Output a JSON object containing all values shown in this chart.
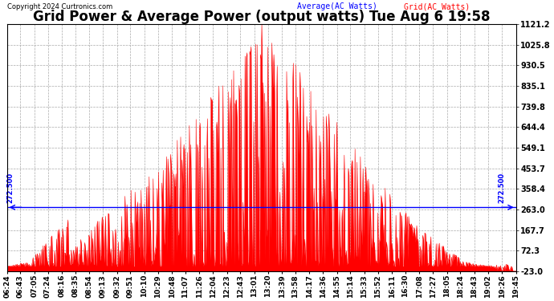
{
  "title": "Grid Power & Average Power (output watts) Tue Aug 6 19:58",
  "copyright": "Copyright 2024 Curtronics.com",
  "legend_avg": "Average(AC Watts)",
  "legend_grid": "Grid(AC Watts)",
  "avg_line_value": 272.5,
  "avg_line_label": "272.500",
  "y_right_ticks": [
    1121.2,
    1025.8,
    930.5,
    835.1,
    739.8,
    644.4,
    549.1,
    453.7,
    358.4,
    263.0,
    167.7,
    72.3,
    -23.0
  ],
  "ylim_min": -23.0,
  "ylim_max": 1121.2,
  "background_color": "#ffffff",
  "plot_bg_color": "#ffffff",
  "grid_color": "#aaaaaa",
  "fill_color": "#ff0000",
  "line_color": "#ff0000",
  "avg_line_color": "#0000ff",
  "title_fontsize": 12,
  "tick_label_fontsize": 6.5,
  "x_tick_labels": [
    "06:24",
    "06:43",
    "07:05",
    "07:24",
    "08:16",
    "08:35",
    "08:54",
    "09:13",
    "09:32",
    "09:51",
    "10:10",
    "10:29",
    "10:48",
    "11:07",
    "11:26",
    "12:04",
    "12:23",
    "12:43",
    "13:01",
    "13:20",
    "13:39",
    "13:58",
    "14:17",
    "14:36",
    "14:55",
    "15:14",
    "15:33",
    "15:52",
    "16:11",
    "16:30",
    "17:08",
    "17:27",
    "18:05",
    "18:24",
    "18:43",
    "19:02",
    "19:26",
    "19:45"
  ]
}
